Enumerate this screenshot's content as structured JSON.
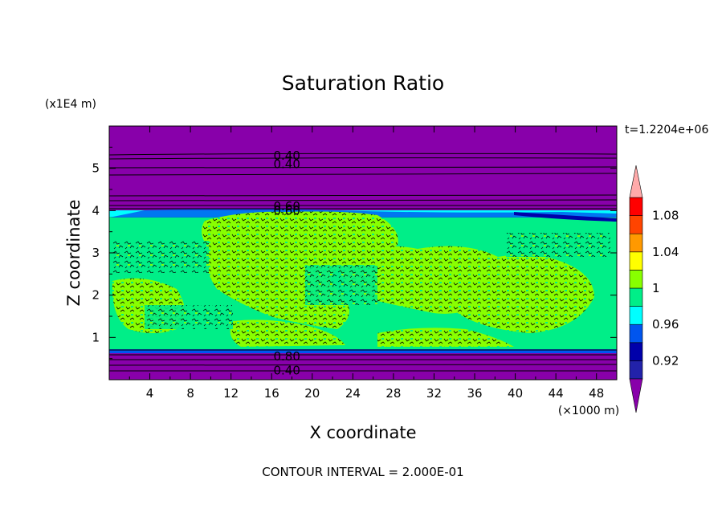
{
  "chart_data": {
    "type": "heatmap",
    "title": "Saturation Ratio",
    "xlabel": "X coordinate",
    "ylabel": "Z coordinate",
    "x_unit": "(×1000 m)",
    "y_unit": "(x1E4 m)",
    "time_label": "t=1.2204e+06",
    "footer": "CONTOUR INTERVAL = 2.000E-01",
    "xlim": [
      0,
      50
    ],
    "ylim": [
      0,
      6
    ],
    "x_ticks": [
      "4",
      "8",
      "12",
      "16",
      "20",
      "24",
      "28",
      "32",
      "36",
      "40",
      "44",
      "48"
    ],
    "y_ticks": [
      "1",
      "2",
      "3",
      "4",
      "5"
    ],
    "colorbar": {
      "tick_labels": [
        "0.92",
        "0.96",
        "1",
        "1.04",
        "1.08"
      ],
      "levels": [
        0.9,
        0.92,
        0.94,
        0.96,
        0.98,
        1.0,
        1.02,
        1.04,
        1.06,
        1.08,
        1.1
      ],
      "colors": [
        "#8800aa",
        "#2222aa",
        "#0000aa",
        "#0055ee",
        "#00ffff",
        "#00ee88",
        "#88ff00",
        "#ffff00",
        "#ff9900",
        "#ff4400",
        "#ff0000",
        "#ffaaaa"
      ]
    },
    "layers": [
      {
        "z_min": 0.0,
        "z_max": 0.75,
        "fill": "below 0.90"
      },
      {
        "z_min": 0.72,
        "z_max": 0.8,
        "fill": "0.96-0.98"
      },
      {
        "z_min": 0.8,
        "z_max": 3.6,
        "fill": "0.98-1.02 (mixed)"
      },
      {
        "z_min": 3.6,
        "z_max": 3.9,
        "fill": "0.98-1.00"
      },
      {
        "z_min": 3.9,
        "z_max": 4.0,
        "fill": "0.94-0.98"
      },
      {
        "z_min": 4.0,
        "z_max": 6.0,
        "fill": "below 0.90"
      }
    ],
    "contour_labels": [
      {
        "text": "0.40",
        "x": 17.5,
        "z": 5.3
      },
      {
        "text": "0.40",
        "x": 17.5,
        "z": 5.1
      },
      {
        "text": "0.60",
        "x": 17.5,
        "z": 4.1
      },
      {
        "text": "0.60",
        "x": 17.5,
        "z": 4.0
      },
      {
        "text": "0.80",
        "x": 17.5,
        "z": 0.55
      },
      {
        "text": "0.40",
        "x": 17.5,
        "z": 0.22
      }
    ]
  }
}
